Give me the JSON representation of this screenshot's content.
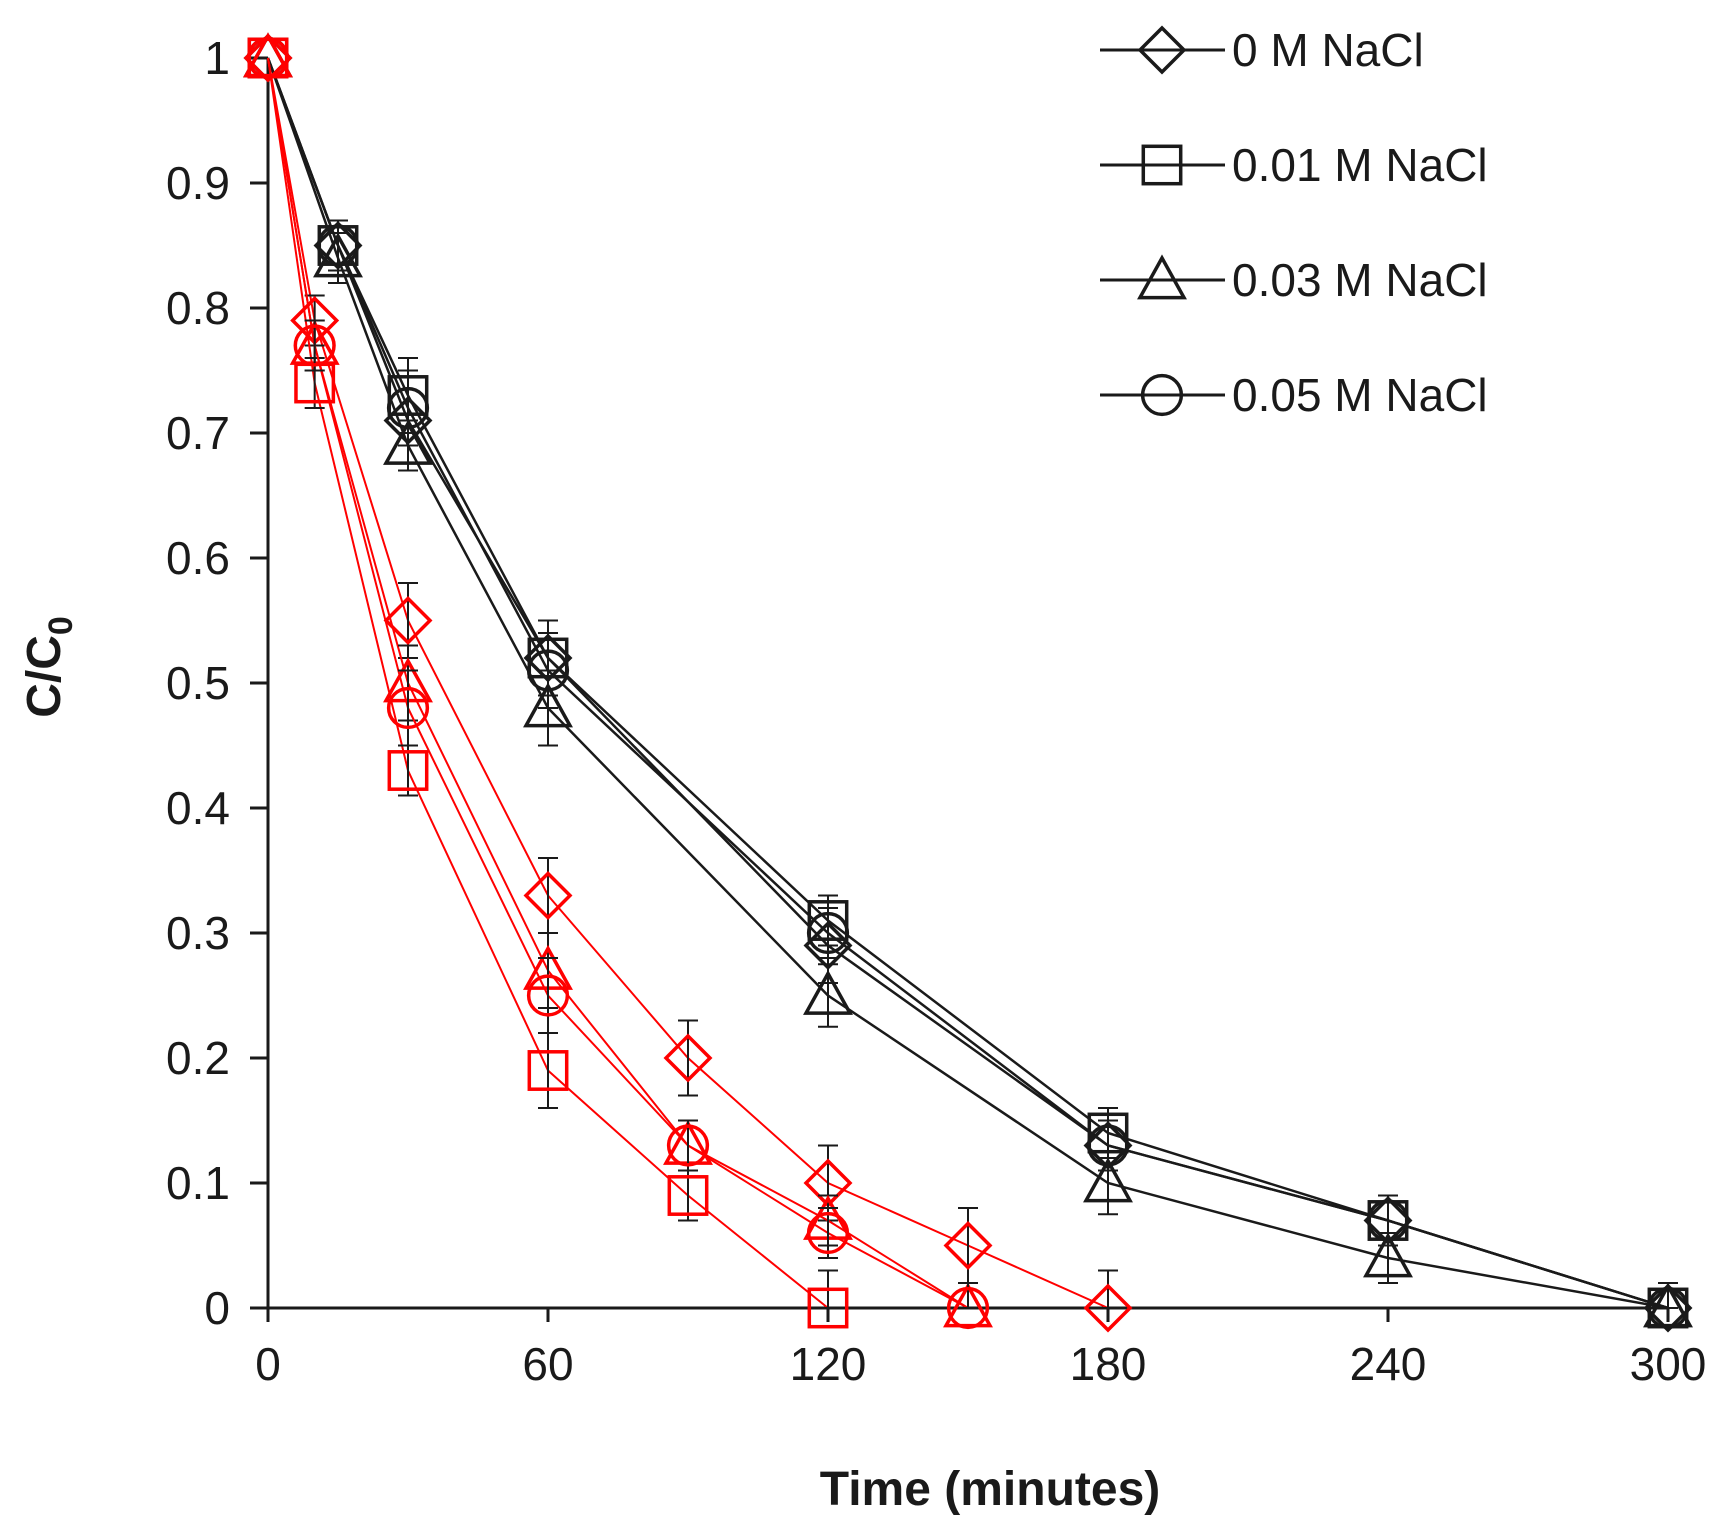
{
  "chart_data": {
    "type": "line",
    "xlabel": "Time (minutes)",
    "ylabel": "C/C",
    "ylabel_sub": "0",
    "xlim": [
      0,
      300
    ],
    "ylim": [
      0,
      1
    ],
    "x_ticks": [
      0,
      60,
      120,
      180,
      240,
      300
    ],
    "y_ticks": [
      0,
      0.1,
      0.2,
      0.3,
      0.4,
      0.5,
      0.6,
      0.7,
      0.8,
      0.9,
      1
    ],
    "y_tick_labels": [
      "0",
      "0.1",
      "0.2",
      "0.3",
      "0.4",
      "0.5",
      "0.6",
      "0.7",
      "0.8",
      "0.9",
      "1"
    ],
    "grid": false,
    "legend_position": "top-right",
    "legend": [
      {
        "label": "0 M NaCl",
        "marker": "diamond"
      },
      {
        "label": "0.01 M NaCl",
        "marker": "square"
      },
      {
        "label": "0.03 M NaCl",
        "marker": "triangle"
      },
      {
        "label": "0.05 M NaCl",
        "marker": "circle"
      }
    ],
    "series": [
      {
        "group": "black",
        "marker": "diamond",
        "color": "#1a1a1a",
        "x": [
          0,
          15,
          30,
          60,
          120,
          180,
          240,
          300
        ],
        "y": [
          1,
          0.85,
          0.71,
          0.52,
          0.29,
          0.13,
          0.07,
          0
        ],
        "err": [
          0,
          0.02,
          0.04,
          0.03,
          0.03,
          0.02,
          0.02,
          0.02
        ]
      },
      {
        "group": "black",
        "marker": "square",
        "color": "#1a1a1a",
        "x": [
          0,
          15,
          30,
          60,
          120,
          180,
          240,
          300
        ],
        "y": [
          1,
          0.85,
          0.73,
          0.52,
          0.31,
          0.14,
          0.07,
          0
        ],
        "err": [
          0,
          0.02,
          0.03,
          0.03,
          0.02,
          0.02,
          0.02,
          0.02
        ]
      },
      {
        "group": "black",
        "marker": "triangle",
        "color": "#1a1a1a",
        "x": [
          0,
          15,
          30,
          60,
          120,
          180,
          240,
          300
        ],
        "y": [
          1,
          0.84,
          0.69,
          0.48,
          0.25,
          0.1,
          0.04,
          0
        ],
        "err": [
          0,
          0.02,
          0.02,
          0.03,
          0.025,
          0.025,
          0.02,
          0.02
        ]
      },
      {
        "group": "black",
        "marker": "circle",
        "color": "#1a1a1a",
        "x": [
          0,
          15,
          30,
          60,
          120,
          180,
          240,
          300
        ],
        "y": [
          1,
          0.85,
          0.72,
          0.51,
          0.3,
          0.13,
          0.07,
          0
        ],
        "err": [
          0,
          0.02,
          0.03,
          0.03,
          0.02,
          0.02,
          0.02,
          0.02
        ]
      },
      {
        "group": "red",
        "marker": "diamond",
        "color": "#ff0000",
        "x": [
          0,
          10,
          30,
          60,
          90,
          120,
          150,
          180
        ],
        "y": [
          1,
          0.79,
          0.55,
          0.33,
          0.2,
          0.1,
          0.05,
          0
        ],
        "err": [
          0,
          0.02,
          0.03,
          0.03,
          0.03,
          0.03,
          0.03,
          0.03
        ]
      },
      {
        "group": "red",
        "marker": "square",
        "color": "#ff0000",
        "x": [
          0,
          10,
          30,
          60,
          90,
          120
        ],
        "y": [
          1,
          0.74,
          0.43,
          0.19,
          0.09,
          0
        ],
        "err": [
          0,
          0.02,
          0.02,
          0.03,
          0.02,
          0.03
        ]
      },
      {
        "group": "red",
        "marker": "triangle",
        "color": "#ff0000",
        "x": [
          0,
          10,
          30,
          60,
          90,
          120,
          150
        ],
        "y": [
          1,
          0.77,
          0.5,
          0.27,
          0.13,
          0.07,
          0
        ],
        "err": [
          0,
          0.02,
          0.03,
          0.03,
          0.02,
          0.02,
          0.02
        ]
      },
      {
        "group": "red",
        "marker": "circle",
        "color": "#ff0000",
        "x": [
          0,
          10,
          30,
          60,
          90,
          120,
          150
        ],
        "y": [
          1,
          0.77,
          0.48,
          0.25,
          0.13,
          0.06,
          0
        ],
        "err": [
          0,
          0.02,
          0.03,
          0.03,
          0.02,
          0.02,
          0.02
        ]
      }
    ]
  }
}
